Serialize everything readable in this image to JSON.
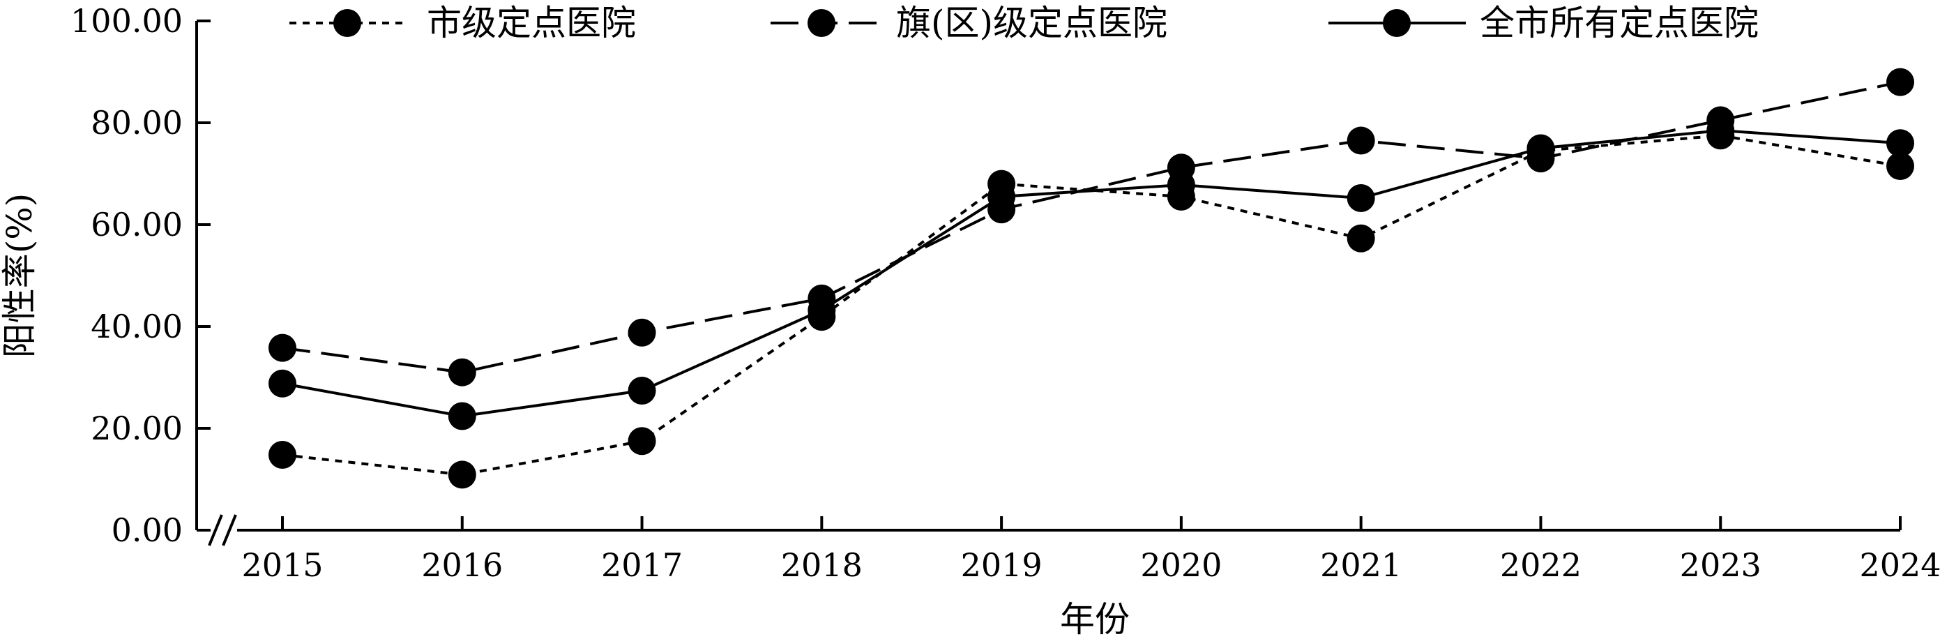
{
  "chart_data": {
    "type": "line",
    "x": [
      "2015",
      "2016",
      "2017",
      "2018",
      "2019",
      "2020",
      "2021",
      "2022",
      "2023",
      "2024"
    ],
    "xlabel": "年份",
    "ylabel": "阳性率(%)",
    "ylim": [
      0,
      100
    ],
    "yticks": [
      "0.00",
      "20.00",
      "40.00",
      "60.00",
      "80.00",
      "100.00"
    ],
    "grid": false,
    "legend": "top",
    "series": [
      {
        "name": "市级定点医院",
        "dash": "dotted",
        "values": [
          14.8,
          10.9,
          17.5,
          41.9,
          68.0,
          65.5,
          57.3,
          74.5,
          77.5,
          71.5
        ]
      },
      {
        "name": "旗(区)级定点医院",
        "dash": "dashed",
        "values": [
          35.8,
          31.0,
          38.8,
          45.5,
          63.0,
          71.2,
          76.5,
          73.0,
          80.5,
          88.0
        ]
      },
      {
        "name": "全市所有定点医院",
        "dash": "solid",
        "values": [
          28.8,
          22.4,
          27.4,
          43.2,
          65.5,
          67.8,
          65.2,
          75.0,
          78.5,
          76.0
        ]
      }
    ]
  }
}
